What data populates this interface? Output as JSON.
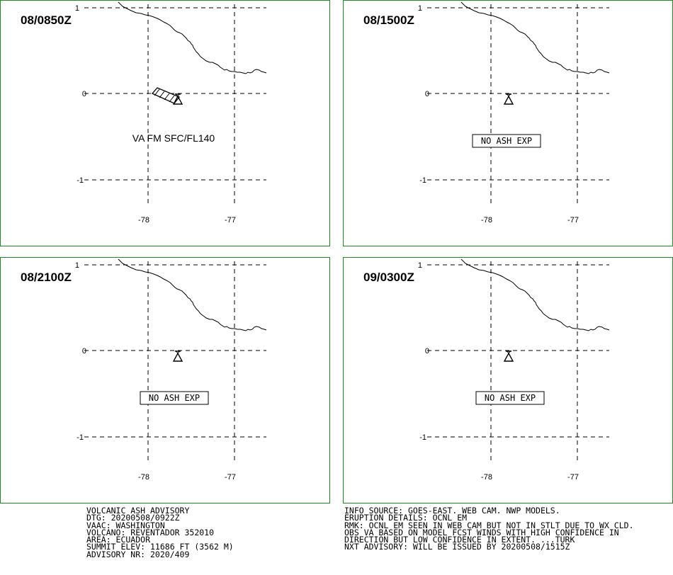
{
  "panels": [
    {
      "time": "08/0850Z",
      "label": "VA FM SFC/FL140",
      "label_type": "ash",
      "ash_area": true
    },
    {
      "time": "08/1500Z",
      "label": "NO ASH EXP",
      "label_type": "none",
      "ash_area": false
    },
    {
      "time": "08/2100Z",
      "label": "NO ASH EXP",
      "label_type": "none",
      "ash_area": false
    },
    {
      "time": "09/0300Z",
      "label": "NO ASH EXP",
      "label_type": "none",
      "ash_area": false
    }
  ],
  "map": {
    "lat_ticks": [
      "1",
      "0",
      "-1"
    ],
    "lon_ticks": [
      "-78",
      "-77"
    ]
  },
  "advisory_left": [
    "VOLCANIC ASH ADVISORY",
    "DTG: 20200508/0922Z",
    "VAAC: WASHINGTON",
    "VOLCANO: REVENTADOR 352010",
    "AREA: ECUADOR",
    "SUMMIT ELEV: 11686 FT (3562 M)",
    "ADVISORY NR: 2020/409"
  ],
  "advisory_right": [
    "INFO SOURCE: GOES-EAST. WEB CAM. NWP MODELS.",
    "ERUPTION DETAILS: OCNL EM",
    "RMK: OCNL EM SEEN IN WEB CAM BUT NOT IN STLT DUE TO WX CLD.",
    "OBS VA BASED ON MODEL FCST WINDS WITH HIGH CONFIDENCE IN",
    "DIRECTION BUT LOW CONFIDENCE IN EXTENT. ...TURK",
    "NXT ADVISORY: WILL BE ISSUED BY 20200508/1515Z"
  ],
  "colors": {
    "frame": "#1f8a1f",
    "ink": "#000000"
  }
}
